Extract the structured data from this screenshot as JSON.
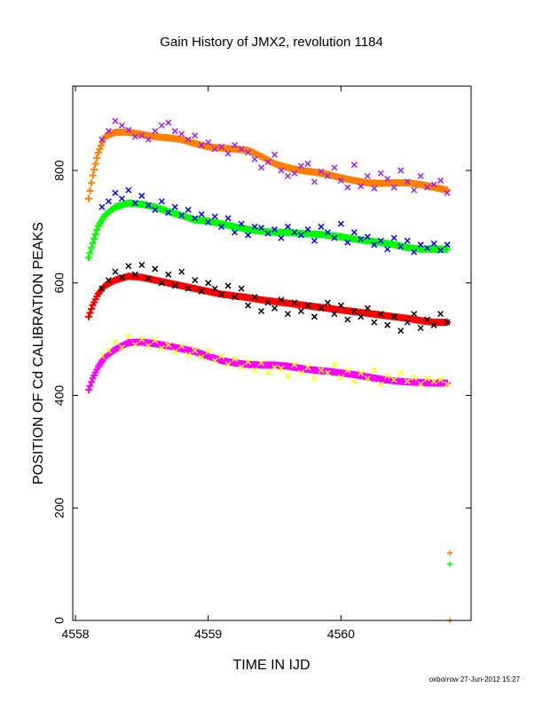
{
  "chart_data": {
    "type": "scatter",
    "title": "Gain History of JMX2, revolution 1184",
    "xlabel": "TIME IN IJD",
    "ylabel": "POSITION OF Cd CALIBRATION PEAKS",
    "xlim": [
      4557.98,
      4560.98
    ],
    "ylim": [
      0,
      950
    ],
    "x_ticks": [
      {
        "value": 4558,
        "label": "4558"
      },
      {
        "value": 4559,
        "label": "4559"
      },
      {
        "value": 4560,
        "label": "4560"
      }
    ],
    "y_ticks": [
      {
        "value": 0,
        "label": "0"
      },
      {
        "value": 200,
        "label": "200"
      },
      {
        "value": 400,
        "label": "400"
      },
      {
        "value": 600,
        "label": "600"
      },
      {
        "value": 800,
        "label": "800"
      }
    ],
    "grid": false,
    "footer": "oxborrow 27-Jun-2012 15:27",
    "series": [
      {
        "color": "#ff8000",
        "marker": "plus",
        "kind": "smooth",
        "x": [
          4558.1,
          4558.13,
          4558.17,
          4558.22,
          4558.3,
          4558.4,
          4558.5,
          4558.6,
          4558.7,
          4558.8,
          4558.9,
          4559.0,
          4559.1,
          4559.2,
          4559.3,
          4559.4,
          4559.5,
          4559.6,
          4559.7,
          4559.8,
          4559.9,
          4560.0,
          4560.1,
          4560.2,
          4560.3,
          4560.4,
          4560.5,
          4560.6,
          4560.7,
          4560.8
        ],
        "y": [
          750,
          790,
          830,
          860,
          868,
          868,
          864,
          860,
          858,
          855,
          848,
          842,
          840,
          838,
          836,
          825,
          812,
          805,
          800,
          797,
          793,
          787,
          782,
          778,
          777,
          778,
          778,
          775,
          770,
          765
        ]
      },
      {
        "color": "#a020f0",
        "marker": "cross",
        "kind": "scatter",
        "x": [
          4558.2,
          4558.25,
          4558.3,
          4558.35,
          4558.4,
          4558.45,
          4558.5,
          4558.55,
          4558.6,
          4558.65,
          4558.7,
          4558.75,
          4558.8,
          4558.85,
          4558.9,
          4558.95,
          4559.0,
          4559.05,
          4559.1,
          4559.15,
          4559.2,
          4559.25,
          4559.3,
          4559.35,
          4559.4,
          4559.45,
          4559.5,
          4559.55,
          4559.6,
          4559.65,
          4559.7,
          4559.75,
          4559.8,
          4559.85,
          4559.9,
          4559.95,
          4560.0,
          4560.05,
          4560.1,
          4560.15,
          4560.2,
          4560.25,
          4560.3,
          4560.35,
          4560.4,
          4560.45,
          4560.5,
          4560.55,
          4560.6,
          4560.65,
          4560.7,
          4560.75,
          4560.8
        ],
        "y": [
          855,
          870,
          888,
          880,
          872,
          860,
          862,
          855,
          870,
          880,
          885,
          870,
          865,
          855,
          862,
          845,
          850,
          838,
          842,
          830,
          845,
          838,
          832,
          820,
          805,
          815,
          828,
          800,
          790,
          795,
          808,
          812,
          780,
          798,
          790,
          805,
          782,
          770,
          810,
          772,
          790,
          768,
          795,
          785,
          770,
          800,
          780,
          765,
          790,
          770,
          775,
          782,
          760
        ]
      },
      {
        "color": "#00ff00",
        "marker": "plus",
        "kind": "smooth",
        "x": [
          4558.1,
          4558.13,
          4558.17,
          4558.22,
          4558.3,
          4558.4,
          4558.5,
          4558.6,
          4558.7,
          4558.8,
          4558.9,
          4559.0,
          4559.1,
          4559.2,
          4559.3,
          4559.4,
          4559.5,
          4559.6,
          4559.7,
          4559.8,
          4559.9,
          4560.0,
          4560.1,
          4560.2,
          4560.3,
          4560.4,
          4560.5,
          4560.6,
          4560.7,
          4560.8
        ],
        "y": [
          645,
          670,
          700,
          720,
          735,
          742,
          740,
          735,
          727,
          720,
          712,
          710,
          705,
          700,
          695,
          692,
          690,
          690,
          688,
          687,
          685,
          682,
          678,
          675,
          672,
          668,
          663,
          660,
          660,
          660
        ]
      },
      {
        "color": "#0000ff",
        "marker": "cross",
        "kind": "scatter",
        "x": [
          4558.2,
          4558.25,
          4558.3,
          4558.35,
          4558.4,
          4558.45,
          4558.5,
          4558.55,
          4558.6,
          4558.65,
          4558.7,
          4558.75,
          4558.8,
          4558.85,
          4558.9,
          4558.95,
          4559.0,
          4559.05,
          4559.1,
          4559.15,
          4559.2,
          4559.25,
          4559.3,
          4559.35,
          4559.4,
          4559.45,
          4559.5,
          4559.55,
          4559.6,
          4559.65,
          4559.7,
          4559.75,
          4559.8,
          4559.85,
          4559.9,
          4559.95,
          4560.0,
          4560.05,
          4560.1,
          4560.15,
          4560.2,
          4560.25,
          4560.3,
          4560.35,
          4560.4,
          4560.45,
          4560.5,
          4560.55,
          4560.6,
          4560.65,
          4560.7,
          4560.75,
          4560.8
        ],
        "y": [
          735,
          745,
          760,
          750,
          765,
          742,
          755,
          738,
          730,
          745,
          725,
          735,
          720,
          730,
          715,
          722,
          708,
          718,
          700,
          715,
          690,
          705,
          685,
          700,
          698,
          688,
          695,
          680,
          700,
          690,
          685,
          695,
          675,
          700,
          690,
          680,
          705,
          672,
          690,
          678,
          682,
          668,
          675,
          660,
          680,
          665,
          675,
          655,
          668,
          662,
          670,
          658,
          668
        ]
      },
      {
        "color": "#ff0000",
        "marker": "plus",
        "kind": "smooth",
        "x": [
          4558.1,
          4558.13,
          4558.17,
          4558.22,
          4558.3,
          4558.4,
          4558.5,
          4558.6,
          4558.7,
          4558.8,
          4558.9,
          4559.0,
          4559.1,
          4559.2,
          4559.3,
          4559.4,
          4559.5,
          4559.6,
          4559.7,
          4559.8,
          4559.9,
          4560.0,
          4560.1,
          4560.2,
          4560.3,
          4560.4,
          4560.5,
          4560.6,
          4560.7,
          4560.8
        ],
        "y": [
          540,
          560,
          580,
          595,
          605,
          612,
          610,
          605,
          600,
          595,
          590,
          585,
          580,
          577,
          574,
          570,
          567,
          564,
          561,
          558,
          555,
          552,
          549,
          546,
          543,
          540,
          537,
          533,
          530,
          530
        ]
      },
      {
        "color": "#000000",
        "marker": "cross",
        "kind": "scatter",
        "x": [
          4558.2,
          4558.25,
          4558.3,
          4558.35,
          4558.4,
          4558.45,
          4558.5,
          4558.55,
          4558.6,
          4558.65,
          4558.7,
          4558.75,
          4558.8,
          4558.85,
          4558.9,
          4558.95,
          4559.0,
          4559.05,
          4559.1,
          4559.15,
          4559.2,
          4559.25,
          4559.3,
          4559.35,
          4559.4,
          4559.45,
          4559.5,
          4559.55,
          4559.6,
          4559.65,
          4559.7,
          4559.75,
          4559.8,
          4559.85,
          4559.9,
          4559.95,
          4560.0,
          4560.05,
          4560.1,
          4560.15,
          4560.2,
          4560.25,
          4560.3,
          4560.35,
          4560.4,
          4560.45,
          4560.5,
          4560.55,
          4560.6,
          4560.65,
          4560.7,
          4560.75,
          4560.8
        ],
        "y": [
          590,
          605,
          620,
          610,
          630,
          615,
          632,
          608,
          625,
          600,
          615,
          595,
          620,
          590,
          605,
          585,
          600,
          590,
          580,
          595,
          575,
          590,
          560,
          575,
          550,
          565,
          555,
          570,
          545,
          565,
          550,
          560,
          540,
          555,
          565,
          545,
          560,
          535,
          550,
          540,
          555,
          530,
          545,
          525,
          540,
          515,
          530,
          545,
          520,
          535,
          525,
          545,
          530
        ]
      },
      {
        "color": "#ff00ff",
        "marker": "plus",
        "kind": "smooth",
        "x": [
          4558.1,
          4558.13,
          4558.17,
          4558.22,
          4558.3,
          4558.4,
          4558.5,
          4558.6,
          4558.7,
          4558.8,
          4558.9,
          4559.0,
          4559.1,
          4559.2,
          4559.3,
          4559.4,
          4559.5,
          4559.6,
          4559.7,
          4559.8,
          4559.9,
          4560.0,
          4560.1,
          4560.2,
          4560.3,
          4560.4,
          4560.5,
          4560.6,
          4560.7,
          4560.8
        ],
        "y": [
          410,
          430,
          450,
          468,
          482,
          494,
          495,
          492,
          488,
          483,
          478,
          470,
          462,
          458,
          455,
          454,
          454,
          452,
          448,
          445,
          443,
          440,
          437,
          433,
          429,
          426,
          424,
          423,
          422,
          422
        ]
      },
      {
        "color": "#ffff00",
        "marker": "cross",
        "kind": "scatter",
        "x": [
          4558.2,
          4558.25,
          4558.3,
          4558.35,
          4558.4,
          4558.45,
          4558.5,
          4558.55,
          4558.6,
          4558.65,
          4558.7,
          4558.75,
          4558.8,
          4558.85,
          4558.9,
          4558.95,
          4559.0,
          4559.05,
          4559.1,
          4559.15,
          4559.2,
          4559.25,
          4559.3,
          4559.35,
          4559.4,
          4559.45,
          4559.5,
          4559.55,
          4559.6,
          4559.65,
          4559.7,
          4559.75,
          4559.8,
          4559.85,
          4559.9,
          4559.95,
          4560.0,
          4560.05,
          4560.1,
          4560.15,
          4560.2,
          4560.25,
          4560.3,
          4560.35,
          4560.4,
          4560.45,
          4560.5,
          4560.55,
          4560.6,
          4560.65,
          4560.7,
          4560.75,
          4560.8
        ],
        "y": [
          470,
          480,
          495,
          485,
          505,
          490,
          500,
          488,
          498,
          484,
          490,
          478,
          488,
          472,
          480,
          468,
          478,
          462,
          470,
          455,
          465,
          450,
          460,
          445,
          458,
          440,
          450,
          448,
          435,
          455,
          440,
          450,
          430,
          445,
          440,
          455,
          432,
          445,
          425,
          440,
          430,
          445,
          420,
          435,
          428,
          440,
          425,
          432,
          420,
          430,
          425,
          428,
          420
        ]
      },
      {
        "color": "#ff8000",
        "marker": "plus",
        "kind": "scatter",
        "x": [
          4560.82,
          4560.82
        ],
        "y": [
          120,
          0
        ]
      },
      {
        "color": "#00ff00",
        "marker": "plus",
        "kind": "scatter",
        "x": [
          4560.82
        ],
        "y": [
          100
        ]
      }
    ]
  }
}
